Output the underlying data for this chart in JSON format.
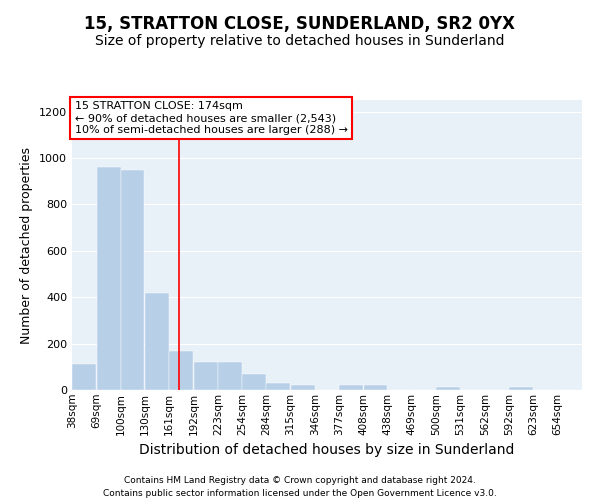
{
  "title": "15, STRATTON CLOSE, SUNDERLAND, SR2 0YX",
  "subtitle": "Size of property relative to detached houses in Sunderland",
  "xlabel": "Distribution of detached houses by size in Sunderland",
  "ylabel": "Number of detached properties",
  "footnote1": "Contains HM Land Registry data © Crown copyright and database right 2024.",
  "footnote2": "Contains public sector information licensed under the Open Government Licence v3.0.",
  "annotation_title": "15 STRATTON CLOSE: 174sqm",
  "annotation_line1": "← 90% of detached houses are smaller (2,543)",
  "annotation_line2": "10% of semi-detached houses are larger (288) →",
  "bar_color": "#b8cfe8",
  "property_line_color": "red",
  "property_line_x": 174,
  "categories": [
    "38sqm",
    "69sqm",
    "100sqm",
    "130sqm",
    "161sqm",
    "192sqm",
    "223sqm",
    "254sqm",
    "284sqm",
    "315sqm",
    "346sqm",
    "377sqm",
    "408sqm",
    "438sqm",
    "469sqm",
    "500sqm",
    "531sqm",
    "562sqm",
    "592sqm",
    "623sqm",
    "654sqm"
  ],
  "bin_edges": [
    38,
    69,
    100,
    130,
    161,
    192,
    223,
    254,
    284,
    315,
    346,
    377,
    408,
    438,
    469,
    500,
    531,
    562,
    592,
    623,
    654,
    685
  ],
  "values": [
    110,
    960,
    950,
    420,
    170,
    120,
    120,
    70,
    30,
    20,
    0,
    20,
    20,
    0,
    0,
    15,
    0,
    0,
    15,
    0,
    0
  ],
  "ylim": [
    0,
    1250
  ],
  "yticks": [
    0,
    200,
    400,
    600,
    800,
    1000,
    1200
  ],
  "background_color": "#e8f0f8",
  "grid_color": "white",
  "title_fontsize": 12,
  "subtitle_fontsize": 10,
  "ylabel_fontsize": 9,
  "xlabel_fontsize": 10,
  "tick_fontsize": 8,
  "annot_fontsize": 8,
  "footnote_fontsize": 6.5
}
